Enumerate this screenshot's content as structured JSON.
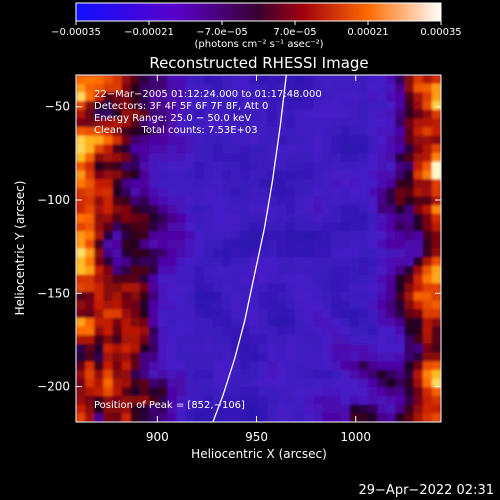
{
  "chart_data": {
    "type": "heatmap",
    "title": "Reconstructed RHESSI Image",
    "xlabel": "Heliocentric X (arcsec)",
    "ylabel": "Heliocentric Y (arcsec)",
    "xlim": [
      859,
      1043
    ],
    "ylim": [
      -219,
      -33
    ],
    "x_ticks": [
      {
        "value": 900,
        "label": "900"
      },
      {
        "value": 950,
        "label": "950"
      },
      {
        "value": 1000,
        "label": "1000"
      }
    ],
    "y_ticks": [
      {
        "value": -50,
        "label": "−50"
      },
      {
        "value": -100,
        "label": "−100"
      },
      {
        "value": -150,
        "label": "−150"
      },
      {
        "value": -200,
        "label": "−200"
      }
    ],
    "colorbar": {
      "range": [
        -0.00035,
        0.00035
      ],
      "tick_values": [
        -0.00035,
        -0.00021,
        -7e-05,
        7e-05,
        0.00021,
        0.00035
      ],
      "tick_labels": [
        "−0.00035",
        "−0.00021",
        "−7.0e−05",
        "7.0e−05",
        "0.00021",
        "0.00035"
      ],
      "unit_label": "(photons cm⁻² s⁻¹ asec⁻²)"
    },
    "annotations": [
      "22−Mar−2005 01:12:24.000 to 01:17:48.000",
      "Detectors: 3F 4F 5F 6F 7F 8F, Att 0",
      "Energy Range: 25.0 − 50.0 keV",
      "Clean      Total counts: 7.53E+03"
    ],
    "peak_label": "Position of Peak = [852,−106]",
    "limb_curve": {
      "x": [
        965,
        962,
        958,
        954,
        949,
        944,
        939,
        933,
        928
      ],
      "y": [
        -33,
        -60,
        -90,
        -115,
        -140,
        -165,
        -185,
        -205,
        -219
      ]
    },
    "grid": false
  },
  "footer": {
    "timestamp": "29−Apr−2022 02:31"
  },
  "colors": {
    "background": "#000000",
    "text": "#ffffff",
    "limb": "#ffffff"
  }
}
